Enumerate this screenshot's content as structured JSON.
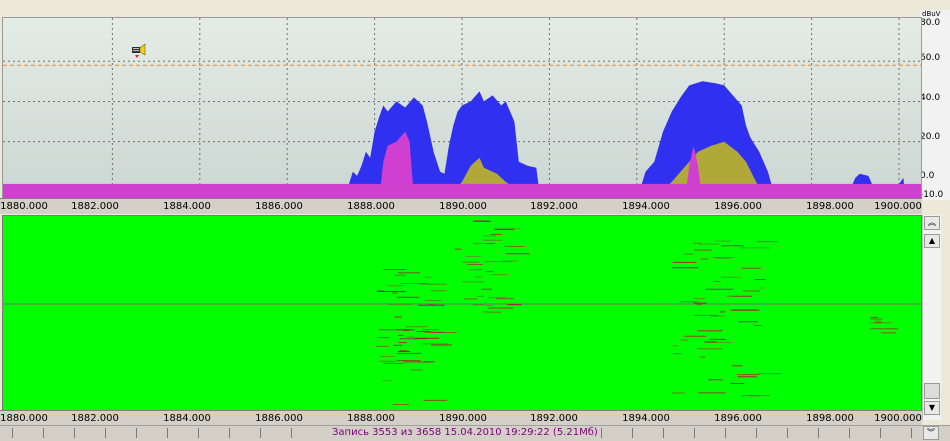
{
  "level_axis": {
    "unit": "dBuV",
    "ticks": [
      "80.0",
      "60.0",
      "40.0",
      "20.0",
      "0.0",
      "-10.0"
    ]
  },
  "frequency_axis": {
    "ticks": [
      "1880.000",
      "1882.000",
      "1884.000",
      "1886.000",
      "1888.000",
      "1890.000",
      "1892.000",
      "1894.000",
      "1896.000",
      "1898.000",
      "1900.000"
    ]
  },
  "status": {
    "record_text": "Запись 3553  из 3658  15.04.2010 19:29:22 (5.21Мб)"
  },
  "icons": {
    "marker": "speaker-marker-icon",
    "scroll_top": "double-chevron-up-icon",
    "scroll_up": "triangle-up-icon",
    "scroll_down": "triangle-down-icon",
    "scroll_bottom": "double-chevron-down-icon"
  },
  "colors": {
    "max_hold": "#3030f0",
    "average": "#b0a838",
    "current": "#d040d0",
    "waterfall_bg": "#00ff00",
    "waterfall_trace": "#c0003a",
    "threshold": "#e08a3a"
  },
  "chart_data": {
    "type": "area",
    "x_range": [
      1880,
      1900
    ],
    "y_range": [
      -10,
      80
    ],
    "threshold_level": 58,
    "series": [
      {
        "name": "",
        "points": [
          [
            1880,
            -10
          ],
          [
            1880.1,
            -9
          ],
          [
            1880.3,
            -8
          ],
          [
            1880.5,
            -10
          ],
          [
            1887.3,
            -10
          ],
          [
            1887.4,
            -2
          ],
          [
            1887.5,
            5
          ],
          [
            1887.6,
            3
          ],
          [
            1887.7,
            8
          ],
          [
            1887.8,
            15
          ],
          [
            1887.9,
            12
          ],
          [
            1888.0,
            25
          ],
          [
            1888.1,
            32
          ],
          [
            1888.2,
            38
          ],
          [
            1888.3,
            35
          ],
          [
            1888.5,
            40
          ],
          [
            1888.7,
            37
          ],
          [
            1888.9,
            42
          ],
          [
            1889.1,
            38
          ],
          [
            1889.2,
            30
          ],
          [
            1889.35,
            15
          ],
          [
            1889.5,
            5
          ],
          [
            1889.6,
            4
          ],
          [
            1889.7,
            18
          ],
          [
            1889.8,
            28
          ],
          [
            1889.9,
            35
          ],
          [
            1890.0,
            38
          ],
          [
            1890.2,
            40
          ],
          [
            1890.4,
            45
          ],
          [
            1890.5,
            40
          ],
          [
            1890.7,
            43
          ],
          [
            1890.9,
            38
          ],
          [
            1891.0,
            40
          ],
          [
            1891.2,
            30
          ],
          [
            1891.3,
            10
          ],
          [
            1891.5,
            8
          ],
          [
            1891.7,
            7
          ],
          [
            1891.8,
            -10
          ],
          [
            1894.0,
            -10
          ],
          [
            1894.1,
            -2
          ],
          [
            1894.2,
            5
          ],
          [
            1894.4,
            10
          ],
          [
            1894.6,
            25
          ],
          [
            1894.8,
            35
          ],
          [
            1895.0,
            42
          ],
          [
            1895.2,
            48
          ],
          [
            1895.5,
            50
          ],
          [
            1895.8,
            49
          ],
          [
            1896.0,
            48
          ],
          [
            1896.2,
            43
          ],
          [
            1896.4,
            38
          ],
          [
            1896.5,
            28
          ],
          [
            1896.6,
            22
          ],
          [
            1896.8,
            15
          ],
          [
            1897.0,
            5
          ],
          [
            1897.2,
            -10
          ],
          [
            1898.8,
            -10
          ],
          [
            1898.9,
            -3
          ],
          [
            1899.0,
            2
          ],
          [
            1899.1,
            4
          ],
          [
            1899.3,
            3
          ],
          [
            1899.4,
            -2
          ],
          [
            1899.5,
            -10
          ],
          [
            1899.9,
            -10
          ],
          [
            1900.0,
            -1
          ],
          [
            1900.1,
            2
          ],
          [
            1900.15,
            -10
          ]
        ]
      },
      {
        "name": "",
        "points": [
          [
            1887.6,
            -10
          ],
          [
            1887.8,
            -8
          ],
          [
            1888.0,
            -5
          ],
          [
            1888.1,
            -2
          ],
          [
            1888.2,
            0
          ],
          [
            1888.3,
            -5
          ],
          [
            1888.5,
            -10
          ],
          [
            1889.4,
            -10
          ],
          [
            1889.6,
            -8
          ],
          [
            1889.8,
            -5
          ],
          [
            1890.0,
            0
          ],
          [
            1890.2,
            8
          ],
          [
            1890.4,
            12
          ],
          [
            1890.5,
            7
          ],
          [
            1890.8,
            4
          ],
          [
            1891.0,
            0
          ],
          [
            1891.2,
            -3
          ],
          [
            1891.4,
            -10
          ],
          [
            1894.2,
            -10
          ],
          [
            1894.5,
            -6
          ],
          [
            1894.8,
            0
          ],
          [
            1895.0,
            5
          ],
          [
            1895.2,
            10
          ],
          [
            1895.4,
            15
          ],
          [
            1895.7,
            18
          ],
          [
            1896.0,
            20
          ],
          [
            1896.3,
            15
          ],
          [
            1896.5,
            10
          ],
          [
            1896.8,
            -3
          ],
          [
            1897.0,
            -10
          ]
        ]
      },
      {
        "name": "",
        "points": [
          [
            1880,
            -10
          ],
          [
            1888.1,
            -10
          ],
          [
            1888.2,
            10
          ],
          [
            1888.3,
            18
          ],
          [
            1888.5,
            20
          ],
          [
            1888.7,
            25
          ],
          [
            1888.8,
            20
          ],
          [
            1888.9,
            -8
          ],
          [
            1889.0,
            -10
          ],
          [
            1895.1,
            -10
          ],
          [
            1895.2,
            8
          ],
          [
            1895.3,
            18
          ],
          [
            1895.4,
            8
          ],
          [
            1895.5,
            -10
          ],
          [
            1900.0,
            -10
          ]
        ]
      }
    ]
  }
}
